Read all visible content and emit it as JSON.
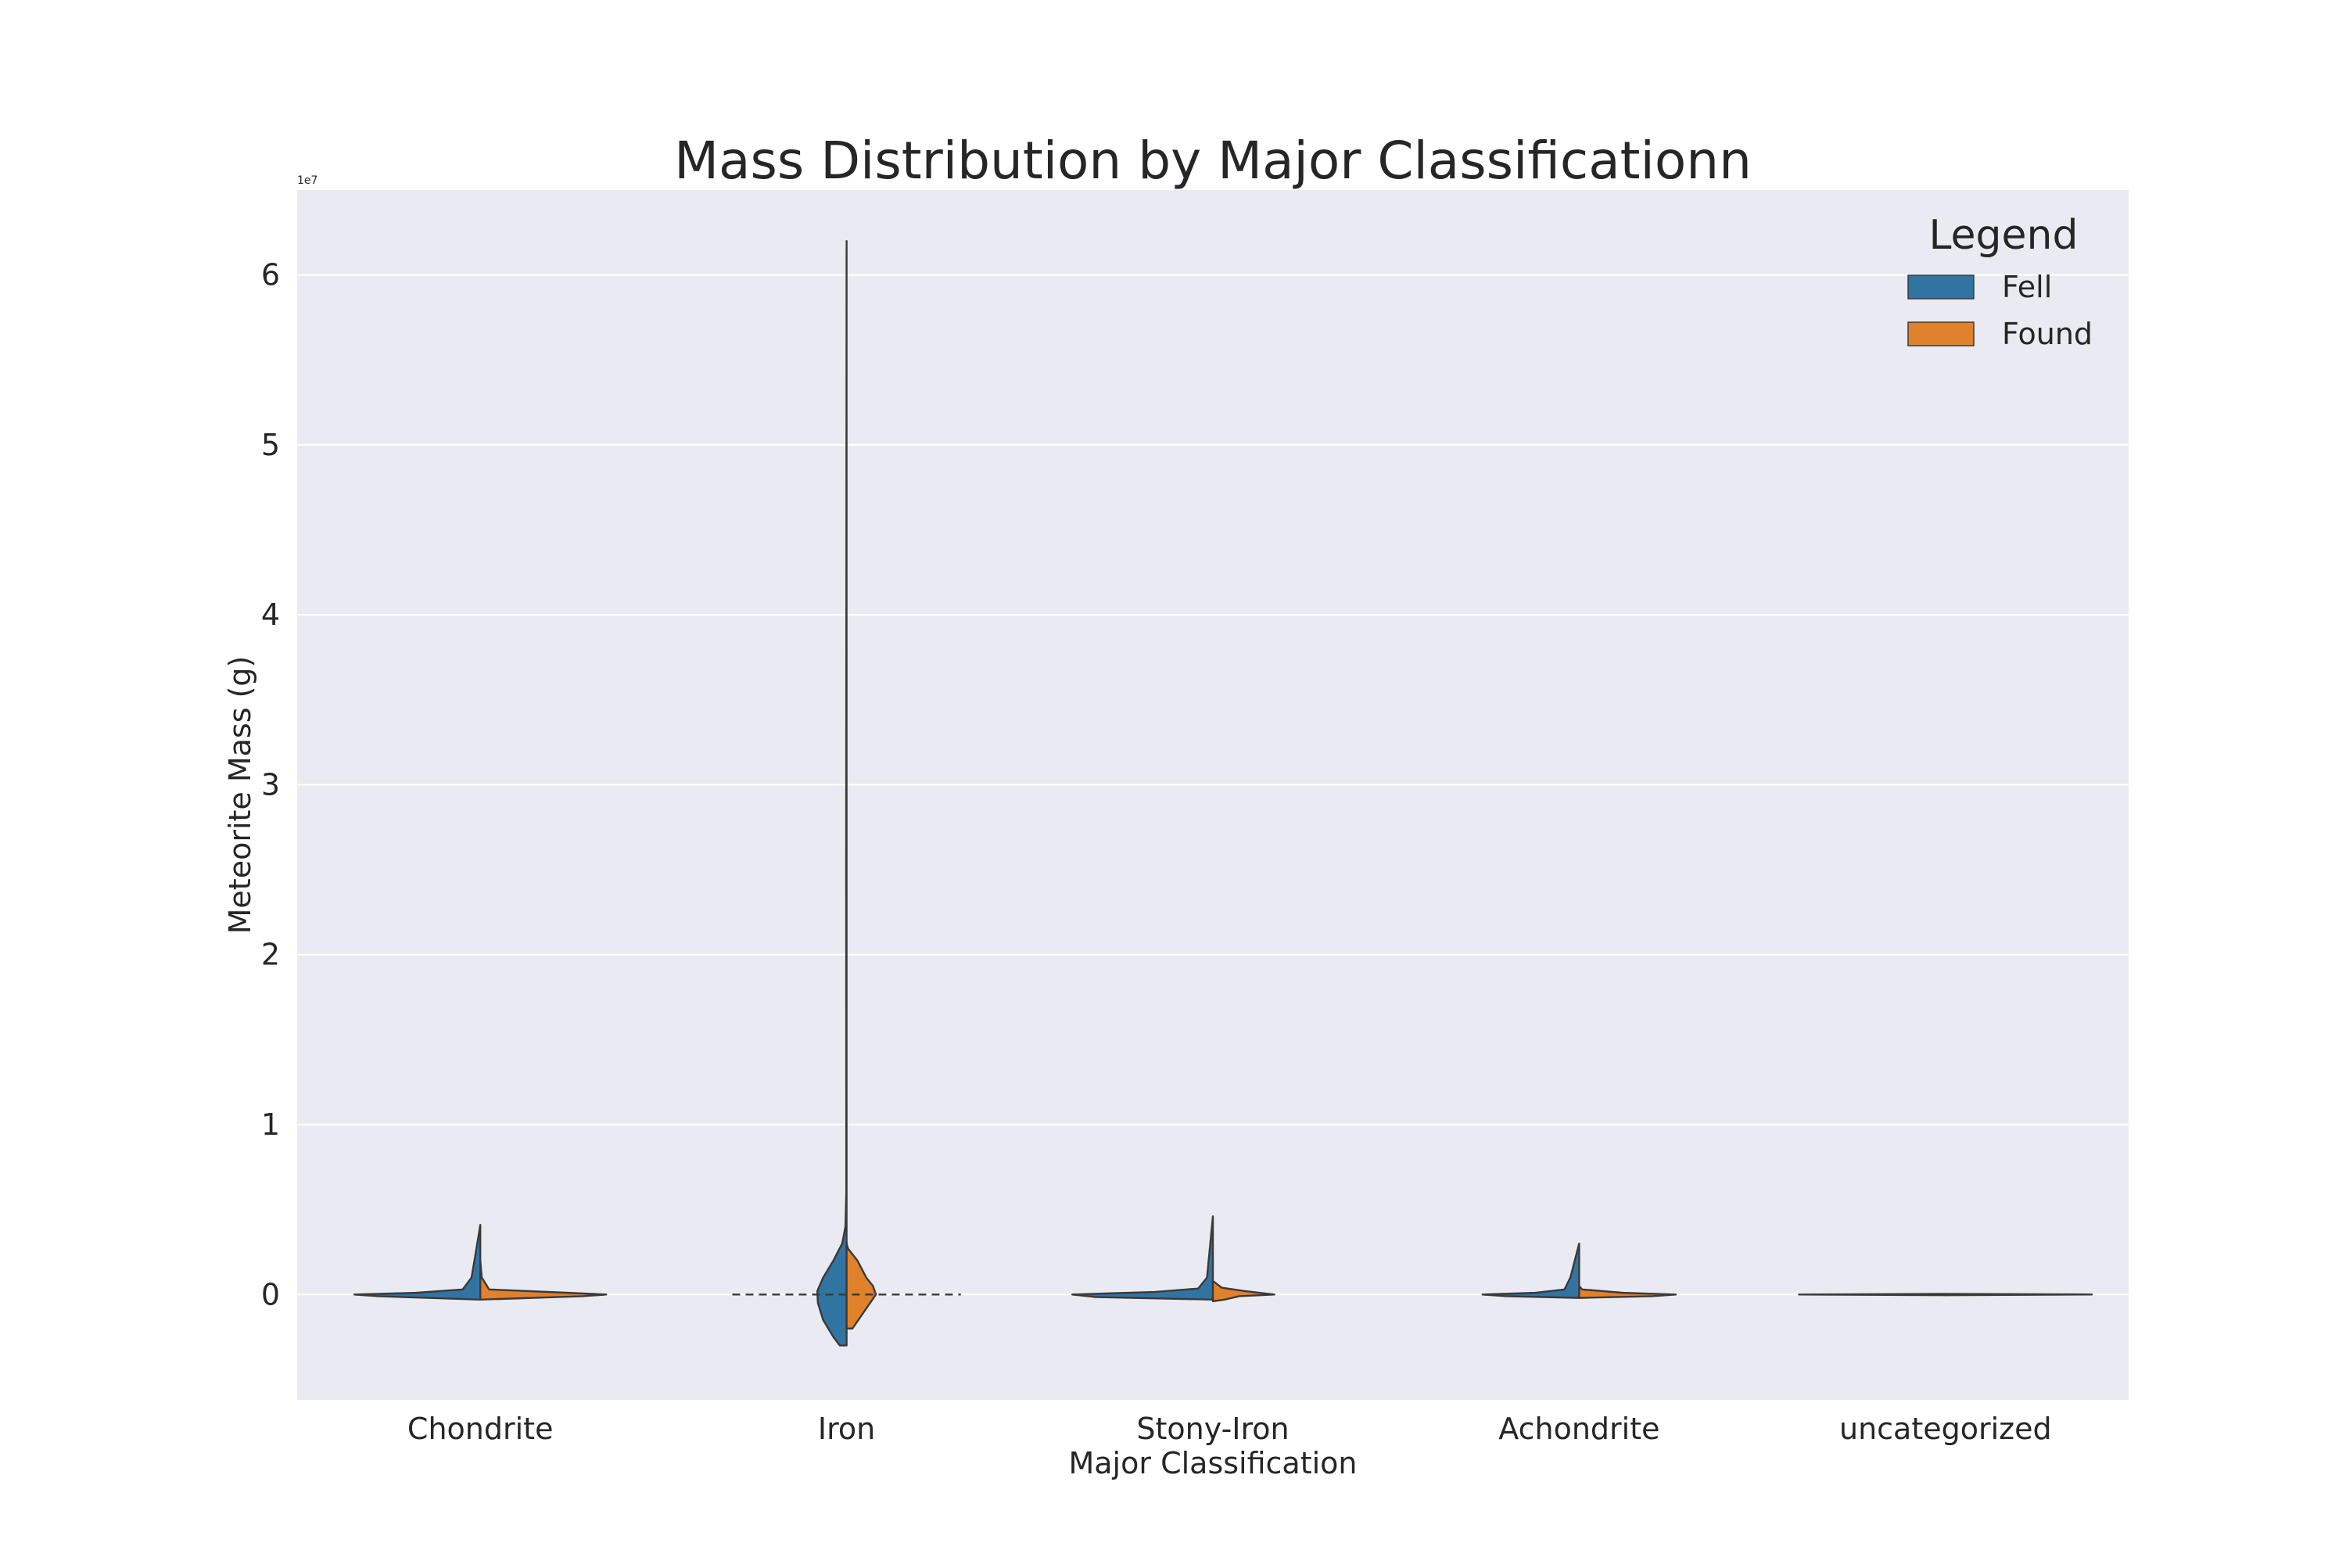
{
  "chart_data": {
    "type": "violin",
    "title": "Mass Distribution by Major Classificationn",
    "xlabel": "Major Classification",
    "ylabel": "Meteorite Mass (g)",
    "y_scale_factor_label": "1e7",
    "y_scale_factor": 10000000,
    "ylim": [
      -6200000,
      65000000
    ],
    "yticks": [
      0,
      10000000,
      20000000,
      30000000,
      40000000,
      50000000,
      60000000
    ],
    "ytick_labels": [
      "0",
      "1",
      "2",
      "3",
      "4",
      "5",
      "6"
    ],
    "grid": true,
    "split": true,
    "inner": "quartile",
    "categories": [
      "Chondrite",
      "Iron",
      "Stony-Iron",
      "Achondrite",
      "uncategorized"
    ],
    "legend": {
      "title": "Legend",
      "placement": "top-right",
      "entries": [
        {
          "name": "Fell",
          "color": "#3274a1"
        },
        {
          "name": "Found",
          "color": "#e1812c"
        }
      ]
    },
    "colors": {
      "background": "#eaeaf2",
      "grid": "#ffffff",
      "outline": "#3a3a3a",
      "Fell": "#3274a1",
      "Found": "#e1812c"
    },
    "series": [
      {
        "name": "Fell",
        "side": "left",
        "violins": [
          {
            "category": "Chondrite",
            "profile": [
              [
                -300000,
                0
              ],
              [
                -100000,
                3.5
              ],
              [
                0,
                4.3
              ],
              [
                100000,
                2.2
              ],
              [
                300000,
                0.6
              ],
              [
                1000000,
                0.3
              ],
              [
                2000000,
                0.2
              ],
              [
                4100000,
                0
              ]
            ]
          },
          {
            "category": "Iron",
            "profile": [
              [
                -3000000,
                0
              ],
              [
                -3000000,
                0.23
              ],
              [
                -2500000,
                0.45
              ],
              [
                -1500000,
                0.8
              ],
              [
                -500000,
                0.98
              ],
              [
                200000,
                1.0
              ],
              [
                1000000,
                0.8
              ],
              [
                2000000,
                0.45
              ],
              [
                3000000,
                0.15
              ],
              [
                4000000,
                0.04
              ],
              [
                6000000,
                0.01
              ],
              [
                25000000,
                0.015
              ],
              [
                62000000,
                0
              ]
            ]
          },
          {
            "category": "Stony-Iron",
            "profile": [
              [
                -300000,
                0
              ],
              [
                -150000,
                4.0
              ],
              [
                0,
                4.8
              ],
              [
                150000,
                2.0
              ],
              [
                350000,
                0.5
              ],
              [
                1000000,
                0.2
              ],
              [
                4600000,
                0
              ]
            ]
          },
          {
            "category": "Achondrite",
            "profile": [
              [
                -200000,
                0
              ],
              [
                -100000,
                2.5
              ],
              [
                0,
                3.3
              ],
              [
                100000,
                1.5
              ],
              [
                300000,
                0.5
              ],
              [
                1000000,
                0.3
              ],
              [
                3000000,
                0
              ]
            ]
          },
          {
            "category": "uncategorized",
            "profile": [
              [
                -40000,
                0
              ],
              [
                0,
                5.0
              ],
              [
                40000,
                0
              ]
            ]
          }
        ]
      },
      {
        "name": "Found",
        "side": "right",
        "violins": [
          {
            "category": "Chondrite",
            "profile": [
              [
                -300000,
                0
              ],
              [
                -100000,
                3.5
              ],
              [
                0,
                4.3
              ],
              [
                100000,
                3.0
              ],
              [
                300000,
                0.3
              ],
              [
                1000000,
                0.05
              ],
              [
                2000000,
                0
              ]
            ]
          },
          {
            "category": "Iron",
            "profile": [
              [
                -2000000,
                0
              ],
              [
                -2000000,
                0.2
              ],
              [
                -1000000,
                0.6
              ],
              [
                0,
                1.0
              ],
              [
                500000,
                0.9
              ],
              [
                1000000,
                0.67
              ],
              [
                2000000,
                0.37
              ],
              [
                2700000,
                0.05
              ],
              [
                3000000,
                0
              ]
            ]
          },
          {
            "category": "Stony-Iron",
            "profile": [
              [
                -400000,
                0
              ],
              [
                -300000,
                0.4
              ],
              [
                -100000,
                0.9
              ],
              [
                0,
                2.1
              ],
              [
                200000,
                1.1
              ],
              [
                400000,
                0.3
              ],
              [
                800000,
                0
              ]
            ]
          },
          {
            "category": "Achondrite",
            "profile": [
              [
                -200000,
                0
              ],
              [
                -100000,
                2.5
              ],
              [
                0,
                3.3
              ],
              [
                100000,
                1.5
              ],
              [
                300000,
                0.1
              ],
              [
                500000,
                0
              ]
            ]
          },
          {
            "category": "uncategorized",
            "profile": [
              [
                -40000,
                0
              ],
              [
                0,
                5.0
              ],
              [
                40000,
                0
              ]
            ]
          }
        ]
      }
    ]
  }
}
